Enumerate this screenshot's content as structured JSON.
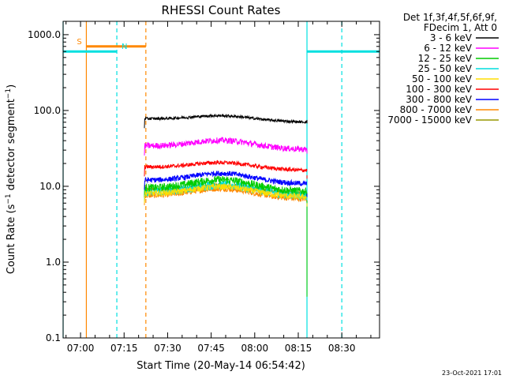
{
  "chart_data": {
    "type": "line",
    "title": "RHESSI Count Rates",
    "xlabel": "Start Time (20-May-14 06:54:42)",
    "ylabel_parts": {
      "pre": "Count Rate (s",
      "sup": "−1",
      "post": " detector segment",
      "sup2": "−1",
      "close": ")"
    },
    "y_scale": "log",
    "ylim": [
      0.1,
      1500
    ],
    "xlim_minutes": [
      -6,
      103
    ],
    "yticks": [
      {
        "value": 0.1,
        "label": "0.1"
      },
      {
        "value": 1,
        "label": "1.0"
      },
      {
        "value": 10,
        "label": "10.0"
      },
      {
        "value": 100,
        "label": "100.0"
      },
      {
        "value": 1000,
        "label": "1000.0"
      }
    ],
    "xticks": [
      {
        "minute": 0,
        "label": "07:00"
      },
      {
        "minute": 15,
        "label": "07:15"
      },
      {
        "minute": 30,
        "label": "07:30"
      },
      {
        "minute": 45,
        "label": "07:45"
      },
      {
        "minute": 60,
        "label": "08:00"
      },
      {
        "minute": 75,
        "label": "08:15"
      },
      {
        "minute": 90,
        "label": "08:30"
      }
    ],
    "time_axis_note": "minutes relative to 07:00",
    "legend_header": [
      "Det 1f,3f,4f,5f,6f,9f,",
      "FDecim 1, Att 0"
    ],
    "data_window_minutes": [
      22,
      78
    ],
    "series": [
      {
        "name": "3 - 6 keV",
        "color": "#000000",
        "base": 78,
        "bump": 1.15,
        "noise": 0.04,
        "end": 75
      },
      {
        "name": "6 - 12 keV",
        "color": "#ff00ff",
        "base": 34,
        "bump": 1.25,
        "noise": 0.09,
        "end": 30
      },
      {
        "name": "12 - 25 keV",
        "color": "#00cc00",
        "base": 9.5,
        "bump": 1.35,
        "noise": 0.12,
        "end": 6.5
      },
      {
        "name": "25 - 50 keV",
        "color": "#00dddd",
        "base": 8.5,
        "bump": 1.3,
        "noise": 0.14,
        "end": 6.0
      },
      {
        "name": "50 - 100 keV",
        "color": "#ffdd00",
        "base": 8.0,
        "bump": 1.3,
        "noise": 0.09,
        "end": 6.0
      },
      {
        "name": "100 - 300 keV",
        "color": "#ff0000",
        "base": 18,
        "bump": 1.2,
        "noise": 0.06,
        "end": 14
      },
      {
        "name": "300 - 800 keV",
        "color": "#0000ff",
        "base": 12,
        "bump": 1.3,
        "noise": 0.08,
        "end": 8
      },
      {
        "name": "800 - 7000 keV",
        "color": "#ff8800",
        "base": 7.5,
        "bump": 1.3,
        "noise": 0.08,
        "end": 5.5
      },
      {
        "name": "7000 - 15000 keV",
        "color": "#999900",
        "base": 9.0,
        "bump": 1.2,
        "noise": 0.07,
        "end": 6.5
      }
    ],
    "eclipse_bars": [
      {
        "label": "",
        "color": "#00e0e0",
        "start_minute": -6,
        "end_minute": 12.5,
        "value": 600
      },
      {
        "label": "",
        "color": "#00e0e0",
        "start_minute": 78,
        "end_minute": 103,
        "value": 600
      }
    ],
    "saa_bars": [
      {
        "label": "S",
        "color": "#ff8800",
        "start_minute": 2,
        "end_minute": 22.5,
        "value": 700
      },
      {
        "label": "N",
        "color": "#00e0e0",
        "start_minute": 12.5,
        "end_minute": 12.5,
        "value": 600
      }
    ],
    "vlines": [
      {
        "minute": 12.5,
        "color": "#00e0e0",
        "dashed": true
      },
      {
        "minute": 22.5,
        "color": "#ff8800",
        "dashed": true
      },
      {
        "minute": 90,
        "color": "#00e0e0",
        "dashed": true
      },
      {
        "minute": 2,
        "color": "#ff8800",
        "dashed": false
      },
      {
        "minute": 78,
        "color": "#00e0e0",
        "dashed": false
      },
      {
        "minute": -6,
        "color": "#00e0e0",
        "dashed": false
      }
    ]
  },
  "footer_timestamp": "23-Oct-2021 17:01"
}
